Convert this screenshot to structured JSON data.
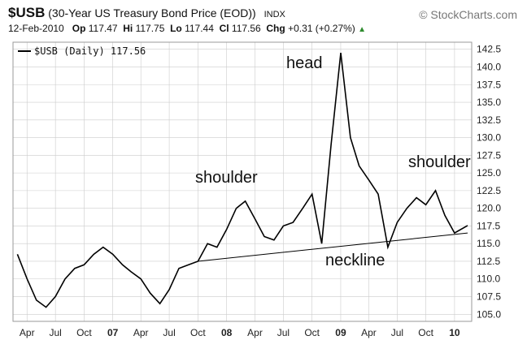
{
  "header": {
    "symbol": "$USB",
    "description": "(30-Year US Treasury Bond Price (EOD))",
    "exchange": "INDX",
    "brand": "© StockCharts.com",
    "date": "12-Feb-2010",
    "op_label": "Op",
    "op_value": "117.47",
    "hi_label": "Hi",
    "hi_value": "117.75",
    "lo_label": "Lo",
    "lo_value": "117.44",
    "cl_label": "Cl",
    "cl_value": "117.56",
    "chg_label": "Chg",
    "chg_value": "+0.31 (+0.27%)",
    "chg_arrow": "▲"
  },
  "legend": {
    "text": "$USB (Daily) 117.56"
  },
  "annotations": {
    "head": "head",
    "left_shoulder": "shoulder",
    "right_shoulder": "shoulder",
    "neckline": "neckline"
  },
  "colors": {
    "line": "#000000",
    "grid": "#cccccc",
    "up": "#2e8b2e"
  },
  "chart_data": {
    "type": "line",
    "series": [
      {
        "name": "$USB (Daily) 117.56",
        "x": [
          "2006-03-01",
          "2006-04-01",
          "2006-05-01",
          "2006-06-01",
          "2006-07-01",
          "2006-08-01",
          "2006-09-01",
          "2006-10-01",
          "2006-11-01",
          "2006-12-01",
          "2007-01-01",
          "2007-02-01",
          "2007-03-01",
          "2007-04-01",
          "2007-05-01",
          "2007-06-01",
          "2007-07-01",
          "2007-08-01",
          "2007-09-01",
          "2007-10-01",
          "2007-11-01",
          "2007-12-01",
          "2008-01-01",
          "2008-02-01",
          "2008-03-01",
          "2008-04-01",
          "2008-05-01",
          "2008-06-01",
          "2008-07-01",
          "2008-08-01",
          "2008-09-01",
          "2008-10-01",
          "2008-11-01",
          "2008-12-01",
          "2009-01-01",
          "2009-02-01",
          "2009-03-01",
          "2009-04-01",
          "2009-05-01",
          "2009-06-01",
          "2009-07-01",
          "2009-08-01",
          "2009-09-01",
          "2009-10-01",
          "2009-11-01",
          "2009-12-01",
          "2010-01-01",
          "2010-02-12"
        ],
        "values": [
          113.5,
          110.0,
          107.0,
          106.0,
          107.5,
          110.0,
          111.5,
          112.0,
          113.5,
          114.5,
          113.5,
          112.0,
          111.0,
          110.0,
          108.0,
          106.5,
          108.5,
          111.5,
          112.0,
          112.5,
          115.0,
          114.5,
          117.0,
          120.0,
          121.0,
          118.5,
          116.0,
          115.5,
          117.5,
          118.0,
          120.0,
          122.0,
          115.0,
          129.0,
          142.0,
          130.0,
          126.0,
          124.0,
          122.0,
          114.5,
          118.0,
          120.0,
          121.5,
          120.5,
          122.5,
          119.0,
          116.5,
          117.56
        ]
      }
    ],
    "neckline": {
      "x": [
        "2007-10-01",
        "2010-02-12"
      ],
      "values": [
        112.5,
        116.5
      ]
    },
    "xticks": [
      "Apr",
      "Jul",
      "Oct",
      "07",
      "Apr",
      "Jul",
      "Oct",
      "08",
      "Apr",
      "Jul",
      "Oct",
      "09",
      "Apr",
      "Jul",
      "Oct",
      "10"
    ],
    "xtick_bold": [
      "07",
      "08",
      "09",
      "10"
    ],
    "yticks": [
      "142.5",
      "140.0",
      "137.5",
      "135.0",
      "132.5",
      "130.0",
      "127.5",
      "125.0",
      "122.5",
      "120.0",
      "117.5",
      "115.0",
      "112.5",
      "110.0",
      "107.5",
      "105.0"
    ],
    "ylim": [
      104.0,
      143.5
    ],
    "xlim": [
      "2006-02-15",
      "2010-02-25"
    ],
    "grid": true,
    "legend_position": "top-left"
  }
}
